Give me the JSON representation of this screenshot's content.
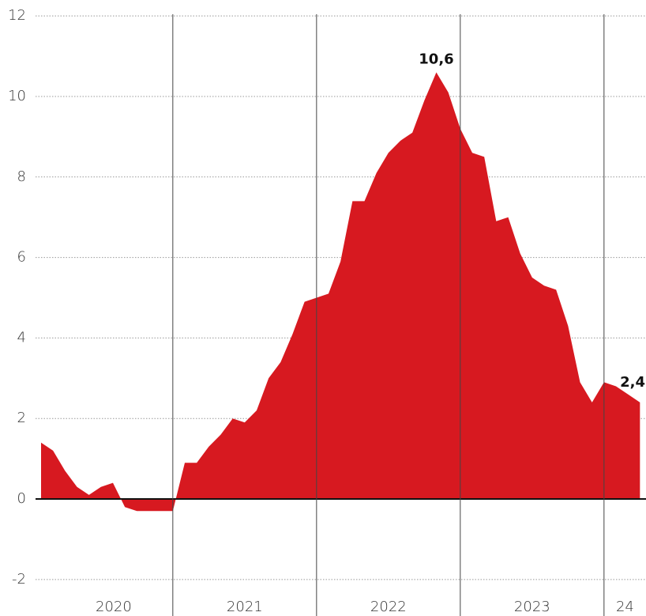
{
  "chart_data": {
    "type": "area",
    "color": "#d71920",
    "values": [
      1.4,
      1.2,
      0.7,
      0.3,
      0.1,
      0.3,
      0.4,
      -0.2,
      -0.3,
      -0.3,
      -0.3,
      -0.3,
      0.9,
      0.9,
      1.3,
      1.6,
      2.0,
      1.9,
      2.2,
      3.0,
      3.4,
      4.1,
      4.9,
      5.0,
      5.1,
      5.9,
      7.4,
      7.4,
      8.1,
      8.6,
      8.9,
      9.1,
      9.9,
      10.6,
      10.1,
      9.2,
      8.6,
      8.5,
      6.9,
      7.0,
      6.1,
      5.5,
      5.3,
      5.2,
      4.3,
      2.9,
      2.4,
      2.9,
      2.8,
      2.6,
      2.4
    ],
    "value_labels": [
      null,
      null,
      null,
      null,
      null,
      null,
      null,
      null,
      null,
      null,
      null,
      null,
      null,
      null,
      null,
      null,
      null,
      null,
      null,
      null,
      null,
      null,
      null,
      null,
      null,
      null,
      null,
      null,
      null,
      null,
      null,
      null,
      null,
      "10,6",
      null,
      null,
      null,
      null,
      null,
      null,
      null,
      null,
      null,
      null,
      null,
      null,
      null,
      null,
      null,
      null,
      "2,4"
    ],
    "year_labels": [
      "2020",
      "2021",
      "2022",
      "2023",
      "24"
    ],
    "ylim": [
      -2.2,
      12.2
    ],
    "yticks": [
      -2,
      0,
      2,
      4,
      6,
      8,
      10,
      12
    ],
    "grid": true
  }
}
